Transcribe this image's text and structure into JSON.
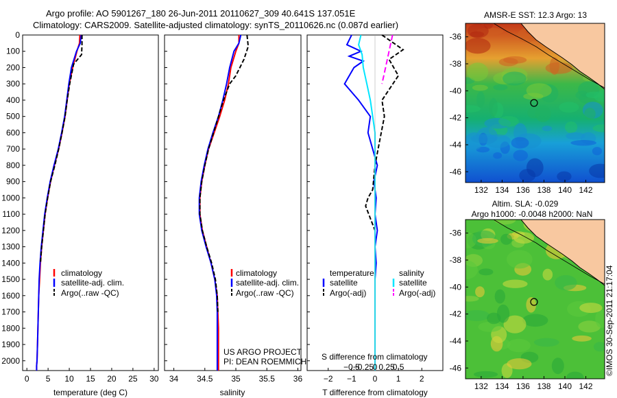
{
  "header": {
    "line1": "Argo profile: AO 5901267_180 26-Jun-2011 20110627_309 40.641S 137.051E",
    "line2": "Climatology: CARS2009. Satellite-adjusted climatology: synTS_20110626.nc (0.087d earlier)"
  },
  "colors": {
    "climatology": "#ff0000",
    "satellite": "#0000ff",
    "argo": "#000000",
    "sal_satellite": "#00e5ff",
    "sal_argo": "#ff00ff",
    "land": "#f8c8a0"
  },
  "chart_data": [
    {
      "type": "line",
      "panel": "temperature",
      "xlabel": "temperature (deg C)",
      "ylabel": "",
      "xlim": [
        -1,
        31
      ],
      "ylim": [
        2060,
        0
      ],
      "xticks": [
        0,
        5,
        10,
        15,
        20,
        25,
        30
      ],
      "yticks": [
        0,
        100,
        200,
        300,
        400,
        500,
        600,
        700,
        800,
        900,
        1000,
        1100,
        1200,
        1300,
        1400,
        1500,
        1600,
        1700,
        1800,
        1900,
        2000
      ],
      "legend": [
        "climatology",
        "satellite-adj. clim.",
        "Argo(..raw -QC)"
      ],
      "series": [
        {
          "name": "climatology",
          "x": [
            12.5,
            12.4,
            11.8,
            10.8,
            10.0,
            9.5,
            9.0,
            8.3,
            7.5,
            6.5,
            5.6,
            4.9,
            4.3,
            3.9,
            3.5,
            3.2,
            3.0,
            2.8,
            2.7,
            2.6,
            2.5,
            2.4,
            2.3,
            2.3
          ],
          "y": [
            0,
            50,
            100,
            200,
            300,
            400,
            500,
            600,
            700,
            800,
            900,
            1000,
            1100,
            1200,
            1300,
            1400,
            1500,
            1600,
            1700,
            1800,
            1900,
            2000,
            2030,
            2060
          ]
        },
        {
          "name": "satellite-adj. clim.",
          "x": [
            12.8,
            12.6,
            11.7,
            10.5,
            9.9,
            9.4,
            8.9,
            8.2,
            7.4,
            6.4,
            5.5,
            4.8,
            4.2,
            3.8,
            3.4,
            3.1,
            2.9,
            2.8,
            2.7,
            2.6,
            2.5,
            2.4,
            2.3,
            2.3
          ],
          "y": [
            0,
            50,
            100,
            200,
            300,
            400,
            500,
            600,
            700,
            800,
            900,
            1000,
            1100,
            1200,
            1300,
            1400,
            1500,
            1600,
            1700,
            1800,
            1900,
            2000,
            2030,
            2060
          ]
        },
        {
          "name": "Argo(..raw -QC)",
          "x": [
            13.0,
            13.0,
            12.9,
            11.0,
            10.1,
            9.5,
            9.0,
            8.3,
            7.5,
            6.6,
            5.6,
            4.9,
            4.3,
            3.9,
            3.5,
            3.2
          ],
          "y": [
            0,
            60,
            120,
            180,
            300,
            400,
            500,
            600,
            700,
            800,
            900,
            1000,
            1100,
            1200,
            1300,
            1400
          ]
        }
      ]
    },
    {
      "type": "line",
      "panel": "salinity",
      "xlabel": "salinity",
      "ylabel": "",
      "xlim": [
        33.85,
        36.05
      ],
      "ylim": [
        2060,
        0
      ],
      "xticks": [
        34,
        34.5,
        35,
        35.5,
        36
      ],
      "xticklabels": [
        "34",
        "34.5",
        "35",
        "35.5",
        "36"
      ],
      "legend": [
        "climatology",
        "satellite-adj. clim.",
        "Argo(..raw -QC)"
      ],
      "annotation": [
        "US ARGO PROJECT",
        "PI: DEAN ROEMMICH"
      ],
      "series": [
        {
          "name": "climatology",
          "x": [
            35.05,
            35.05,
            35.0,
            34.92,
            34.88,
            34.82,
            34.74,
            34.65,
            34.56,
            34.5,
            34.45,
            34.42,
            34.42,
            34.46,
            34.53,
            34.6,
            34.66,
            34.7,
            34.71,
            34.72,
            34.72,
            34.72,
            34.72
          ],
          "y": [
            0,
            50,
            100,
            200,
            300,
            400,
            500,
            600,
            700,
            800,
            900,
            1000,
            1100,
            1200,
            1300,
            1400,
            1500,
            1600,
            1700,
            1800,
            1900,
            2000,
            2060
          ]
        },
        {
          "name": "satellite-adj. clim.",
          "x": [
            35.08,
            35.05,
            34.97,
            34.9,
            34.85,
            34.79,
            34.72,
            34.63,
            34.55,
            34.49,
            34.44,
            34.41,
            34.41,
            34.45,
            34.52,
            34.6,
            34.66,
            34.69,
            34.7,
            34.7,
            34.7,
            34.7,
            34.7
          ],
          "y": [
            0,
            50,
            100,
            200,
            300,
            400,
            500,
            600,
            700,
            800,
            900,
            1000,
            1100,
            1200,
            1300,
            1400,
            1500,
            1600,
            1700,
            1800,
            1900,
            2000,
            2060
          ]
        },
        {
          "name": "Argo(..raw -QC)",
          "x": [
            35.18,
            35.2,
            35.13,
            35.0,
            34.9,
            34.8,
            34.72,
            34.64,
            34.56,
            34.5,
            34.45,
            34.42,
            34.42,
            34.46,
            34.53,
            34.61,
            34.67,
            34.7,
            34.71
          ],
          "y": [
            0,
            70,
            150,
            250,
            300,
            400,
            500,
            600,
            700,
            800,
            900,
            1000,
            1100,
            1200,
            1300,
            1400,
            1500,
            1600,
            1700
          ]
        }
      ]
    },
    {
      "type": "line",
      "panel": "difference",
      "xlabel": "T difference from climatology",
      "xlabel_top": "S difference from climatology",
      "xlim": [
        -2.9,
        2.9
      ],
      "ylim": [
        2060,
        0
      ],
      "xticks": [
        -2,
        -1,
        0,
        1,
        2
      ],
      "xticklabels": [
        "−2",
        "−1",
        "0",
        "1",
        "2"
      ],
      "sticks": [
        -0.5,
        -0.25,
        0,
        0.25,
        0.5
      ],
      "sticklabels": [
        "−0.5",
        "−0.25",
        "0",
        "0.25",
        "0.5"
      ],
      "legend": {
        "temperature_head": "temperature",
        "salinity_head": "salinity",
        "temperature": [
          "satellite",
          "Argo(-adj)"
        ],
        "salinity": [
          "satellite",
          "Argo(-adj)"
        ]
      },
      "series": [
        {
          "name": "temperature satellite",
          "x": [
            -1.0,
            -1.2,
            -0.6,
            -1.1,
            -0.5,
            -0.9,
            -1.3,
            -0.7,
            -0.2,
            -0.3,
            -0.1,
            0.1,
            -0.05,
            0.05,
            0.0,
            0.1,
            0.0,
            0.05,
            0.0,
            0.0,
            0.0,
            0.0
          ],
          "y": [
            0,
            60,
            100,
            130,
            160,
            200,
            300,
            400,
            500,
            600,
            700,
            800,
            900,
            1000,
            1100,
            1200,
            1300,
            1400,
            1500,
            1700,
            1900,
            2060
          ]
        },
        {
          "name": "temperature Argo(-adj)",
          "x": [
            0.3,
            1.2,
            0.6,
            1.0,
            0.3,
            0.4,
            0.2,
            0.0,
            -0.1,
            -0.3,
            -0.4,
            0.0,
            0.0,
            0.0
          ],
          "y": [
            0,
            90,
            150,
            250,
            400,
            500,
            650,
            800,
            950,
            1000,
            1050,
            1200,
            1400,
            1750
          ]
        },
        {
          "name": "salinity satellite",
          "x": [
            -0.6,
            -0.7,
            -0.55,
            -0.5,
            -0.35,
            -0.2,
            -0.1,
            0.0,
            0.0,
            0.0,
            0.0,
            0.0,
            0.0,
            0.0
          ],
          "y": [
            0,
            60,
            120,
            200,
            300,
            400,
            500,
            600,
            800,
            1000,
            1200,
            1500,
            1800,
            2060
          ]
        },
        {
          "name": "salinity Argo(-adj)",
          "x": [
            0.75,
            0.6,
            0.45,
            0.3
          ],
          "y": [
            0,
            100,
            200,
            300
          ]
        }
      ]
    },
    {
      "type": "heatmap",
      "panel": "map-sst",
      "title": "AMSR-E SST: 12.3 Argo: 13",
      "xlim": [
        130.5,
        143.8
      ],
      "ylim": [
        -46.8,
        -35.0
      ],
      "xticks": [
        132,
        134,
        136,
        138,
        140,
        142
      ],
      "yticks": [
        -36,
        -38,
        -40,
        -42,
        -44,
        -46
      ],
      "argo_position": {
        "lon": 137.051,
        "lat": -40.641
      }
    },
    {
      "type": "heatmap",
      "panel": "map-sla",
      "title": "Altim. SLA: -0.029",
      "subtitle": "Argo h1000: -0.0048 h2000: NaN",
      "xlim": [
        130.5,
        143.8
      ],
      "ylim": [
        -46.8,
        -35.0
      ],
      "xticks": [
        132,
        134,
        136,
        138,
        140,
        142
      ],
      "yticks": [
        -36,
        -38,
        -40,
        -42,
        -44,
        -46
      ],
      "argo_position": {
        "lon": 137.051,
        "lat": -40.641
      }
    }
  ],
  "credit": "©IMOS 30-Sep-2011 21:17:04"
}
